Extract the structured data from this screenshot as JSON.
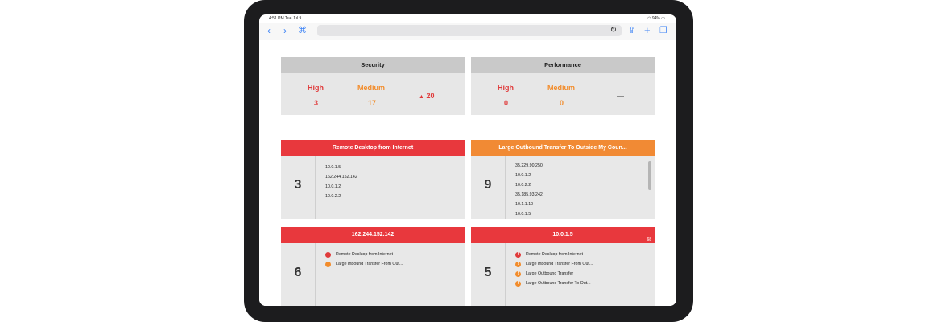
{
  "status": {
    "time": "4:51 PM   Tue Jul 9",
    "battery": "94%"
  },
  "toolbar": {
    "back_icon": "back-chevron-icon",
    "forward_icon": "forward-chevron-icon",
    "bookmarks_icon": "book-icon",
    "reload_icon": "reload-icon",
    "share_icon": "share-icon",
    "add_icon": "plus-icon",
    "tabs_icon": "tabs-icon"
  },
  "security": {
    "title": "Security",
    "high_label": "High",
    "high_value": "3",
    "medium_label": "Medium",
    "medium_value": "17",
    "trend": "20"
  },
  "performance": {
    "title": "Performance",
    "high_label": "High",
    "high_value": "0",
    "medium_label": "Medium",
    "medium_value": "0",
    "trend": "—"
  },
  "cards": [
    {
      "title": "Remote Desktop from Internet",
      "count": "3",
      "items": [
        "10.0.1.5",
        "162.244.152.142",
        "10.0.1.2",
        "10.0.2.2"
      ]
    },
    {
      "title": "Large Outbound Transfer To Outside My Coun...",
      "count": "9",
      "items": [
        "35.229.90.250",
        "10.0.1.2",
        "10.0.2.2",
        "35.185.93.242",
        "10.1.1.10",
        "10.0.1.5"
      ]
    },
    {
      "title": "162.244.152.142",
      "count": "6",
      "alerts": [
        "Remote Desktop from Internet",
        "Large Inbound Transfer From Out..."
      ]
    },
    {
      "title": "10.0.1.5",
      "count": "5",
      "badge": "68",
      "alerts": [
        "Remote Desktop from Internet",
        "Large Inbound Transfer From Out...",
        "Large Outbound Transfer",
        "Large Outbound Transfer To Out..."
      ]
    }
  ],
  "colors": {
    "red": "#e8383d",
    "orange": "#f18a34",
    "accent": "#3b82f6"
  }
}
